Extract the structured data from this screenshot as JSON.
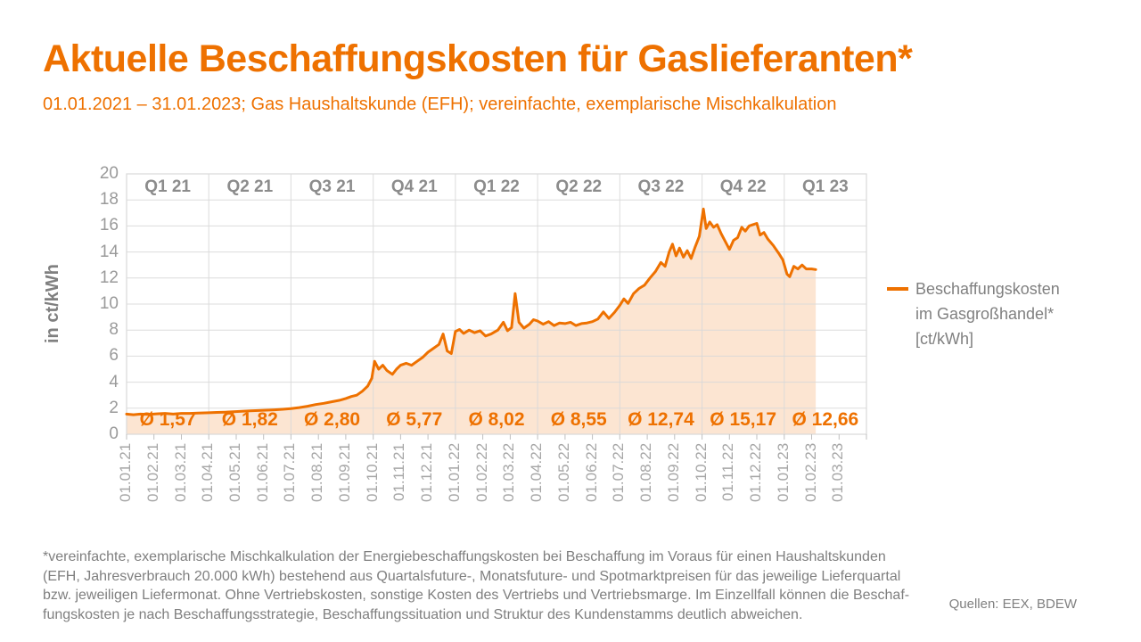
{
  "header": {
    "title": "Aktuelle Beschaffungskosten für Gaslieferanten*",
    "subtitle": "01.01.2021 – 31.01.2023; Gas Haushaltskunde (EFH); vereinfachte, exemplarische Mischkalkulation"
  },
  "legend": {
    "lines": [
      "Beschaffungskosten",
      "im Gasgroßhandel*",
      "[ct/kWh]"
    ]
  },
  "footnote": {
    "lines": [
      "*vereinfachte, exemplarische Mischkalkulation der Energiebeschaffungskosten bei Beschaffung im Voraus für einen Haushaltskunden",
      "(EFH, Jahresverbrauch 20.000 kWh) bestehend aus Quartalsfuture-, Monatsfuture- und Spotmarktpreisen für das jeweilige Lieferquartal",
      "bzw. jeweiligen Liefermonat. Ohne Vertriebskosten, sonstige Kosten des Vertriebs und Vertriebsmarge. Im Einzellfall können die Beschaf-",
      "fungskosten je nach Beschaffungsstrategie, Beschaffungssituation und Struktur des Kundenstamms deutlich abweichen."
    ]
  },
  "source": {
    "text": "Quellen: EEX, BDEW"
  },
  "colors": {
    "accent_orange": "#ee7100",
    "area_fill": "#fce5d2",
    "grid": "#d9d9d9",
    "tick_mark": "#bfbfbf",
    "quarter_label": "#8c8c8c",
    "axis_text": "#9a9a9a",
    "x_axis_text": "#a6a6a6",
    "footnote_text": "#7f7f7f"
  },
  "chart_data": {
    "type": "area",
    "title": "Aktuelle Beschaffungskosten für Gaslieferanten*",
    "xlabel": "",
    "ylabel": "in ct/kWh",
    "ylim": [
      0,
      20
    ],
    "yticks": [
      0,
      2,
      4,
      6,
      8,
      10,
      12,
      14,
      16,
      18,
      20
    ],
    "grid": {
      "horizontal_step": 2,
      "vertical": "quarter-boundaries"
    },
    "legend_position": "right",
    "x_unit": "months since 01.01.2021",
    "x_range_months": [
      0,
      27
    ],
    "x_tick_labels": [
      "01.01.21",
      "01.02.21",
      "01.03.21",
      "01.04.21",
      "01.05.21",
      "01.06.21",
      "01.07.21",
      "01.08.21",
      "01.09.21",
      "01.10.21",
      "01.11.21",
      "01.12.21",
      "01.01.22",
      "01.02.22",
      "01.03.22",
      "01.04.22",
      "01.05.22",
      "01.06.22",
      "01.07.22",
      "01.08.22",
      "01.09.22",
      "01.10.22",
      "01.11.22",
      "01.12.22",
      "01.01.23",
      "01.02.23",
      "01.03.23"
    ],
    "quarter_labels": [
      "Q1 21",
      "Q2 21",
      "Q3 21",
      "Q4 21",
      "Q1 22",
      "Q2 22",
      "Q3 22",
      "Q4 22",
      "Q1 23"
    ],
    "quarter_averages": [
      1.57,
      1.82,
      2.8,
      5.77,
      8.02,
      8.55,
      12.74,
      15.17,
      12.66
    ],
    "quarter_average_labels": [
      "Ø 1,57",
      "Ø 1,82",
      "Ø 2,80",
      "Ø 5,77",
      "Ø 8,02",
      "Ø 8,55",
      "Ø 12,74",
      "Ø 15,17",
      "Ø 12,66"
    ],
    "series": [
      {
        "name": "Beschaffungskosten im Gasgroßhandel* [ct/kWh]",
        "color": "#ee7100",
        "fill": "#fce5d2",
        "points": [
          [
            0,
            1.55
          ],
          [
            0.25,
            1.5
          ],
          [
            0.5,
            1.55
          ],
          [
            0.8,
            1.52
          ],
          [
            1.1,
            1.57
          ],
          [
            1.4,
            1.6
          ],
          [
            1.7,
            1.55
          ],
          [
            2,
            1.6
          ],
          [
            2.3,
            1.6
          ],
          [
            2.6,
            1.62
          ],
          [
            3,
            1.65
          ],
          [
            3.3,
            1.68
          ],
          [
            3.6,
            1.7
          ],
          [
            3.9,
            1.73
          ],
          [
            4.2,
            1.76
          ],
          [
            4.5,
            1.8
          ],
          [
            4.8,
            1.82
          ],
          [
            5.1,
            1.85
          ],
          [
            5.4,
            1.88
          ],
          [
            5.7,
            1.92
          ],
          [
            6,
            1.97
          ],
          [
            6.3,
            2.05
          ],
          [
            6.6,
            2.15
          ],
          [
            6.9,
            2.28
          ],
          [
            7.2,
            2.38
          ],
          [
            7.5,
            2.5
          ],
          [
            7.8,
            2.62
          ],
          [
            8,
            2.75
          ],
          [
            8.2,
            2.9
          ],
          [
            8.4,
            3.0
          ],
          [
            8.6,
            3.3
          ],
          [
            8.8,
            3.7
          ],
          [
            8.95,
            4.3
          ],
          [
            9.05,
            5.6
          ],
          [
            9.2,
            5.0
          ],
          [
            9.35,
            5.3
          ],
          [
            9.5,
            4.9
          ],
          [
            9.7,
            4.6
          ],
          [
            9.85,
            5.0
          ],
          [
            10,
            5.3
          ],
          [
            10.2,
            5.45
          ],
          [
            10.4,
            5.3
          ],
          [
            10.6,
            5.6
          ],
          [
            10.8,
            5.9
          ],
          [
            11,
            6.3
          ],
          [
            11.2,
            6.6
          ],
          [
            11.4,
            6.9
          ],
          [
            11.55,
            7.7
          ],
          [
            11.7,
            6.4
          ],
          [
            11.85,
            6.2
          ],
          [
            12,
            7.9
          ],
          [
            12.15,
            8.05
          ],
          [
            12.3,
            7.75
          ],
          [
            12.5,
            8.0
          ],
          [
            12.7,
            7.8
          ],
          [
            12.9,
            7.95
          ],
          [
            13.1,
            7.55
          ],
          [
            13.3,
            7.7
          ],
          [
            13.55,
            8.0
          ],
          [
            13.75,
            8.6
          ],
          [
            13.9,
            7.95
          ],
          [
            14.05,
            8.2
          ],
          [
            14.18,
            10.8
          ],
          [
            14.32,
            8.6
          ],
          [
            14.5,
            8.15
          ],
          [
            14.7,
            8.45
          ],
          [
            14.85,
            8.8
          ],
          [
            15,
            8.7
          ],
          [
            15.2,
            8.45
          ],
          [
            15.4,
            8.65
          ],
          [
            15.6,
            8.35
          ],
          [
            15.8,
            8.55
          ],
          [
            16,
            8.5
          ],
          [
            16.2,
            8.6
          ],
          [
            16.4,
            8.35
          ],
          [
            16.6,
            8.5
          ],
          [
            16.8,
            8.55
          ],
          [
            17,
            8.65
          ],
          [
            17.2,
            8.85
          ],
          [
            17.4,
            9.4
          ],
          [
            17.6,
            8.9
          ],
          [
            17.8,
            9.35
          ],
          [
            18,
            9.9
          ],
          [
            18.15,
            10.4
          ],
          [
            18.3,
            10.05
          ],
          [
            18.5,
            10.8
          ],
          [
            18.7,
            11.2
          ],
          [
            18.9,
            11.45
          ],
          [
            19.1,
            12.0
          ],
          [
            19.3,
            12.5
          ],
          [
            19.5,
            13.2
          ],
          [
            19.65,
            12.9
          ],
          [
            19.8,
            14.0
          ],
          [
            19.92,
            14.6
          ],
          [
            20.05,
            13.7
          ],
          [
            20.18,
            14.3
          ],
          [
            20.32,
            13.6
          ],
          [
            20.46,
            14.1
          ],
          [
            20.6,
            13.5
          ],
          [
            20.75,
            14.4
          ],
          [
            20.9,
            15.2
          ],
          [
            21.05,
            17.3
          ],
          [
            21.15,
            15.8
          ],
          [
            21.28,
            16.3
          ],
          [
            21.42,
            15.9
          ],
          [
            21.55,
            16.1
          ],
          [
            21.7,
            15.4
          ],
          [
            21.85,
            14.8
          ],
          [
            22,
            14.2
          ],
          [
            22.15,
            14.9
          ],
          [
            22.3,
            15.1
          ],
          [
            22.45,
            15.9
          ],
          [
            22.58,
            15.6
          ],
          [
            22.72,
            16.0
          ],
          [
            22.86,
            16.1
          ],
          [
            23,
            16.2
          ],
          [
            23.12,
            15.3
          ],
          [
            23.26,
            15.5
          ],
          [
            23.4,
            15.0
          ],
          [
            23.6,
            14.5
          ],
          [
            23.8,
            13.9
          ],
          [
            23.95,
            13.4
          ],
          [
            24.1,
            12.3
          ],
          [
            24.2,
            12.1
          ],
          [
            24.35,
            12.9
          ],
          [
            24.5,
            12.7
          ],
          [
            24.65,
            13.0
          ],
          [
            24.8,
            12.7
          ],
          [
            25,
            12.7
          ],
          [
            25.15,
            12.65
          ]
        ]
      }
    ]
  }
}
